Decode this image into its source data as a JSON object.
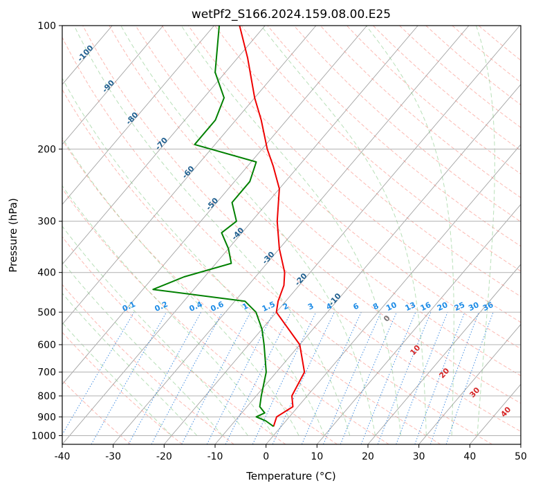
{
  "chart_data": {
    "type": "line",
    "title": "wetPf2_S166.2024.159.08.00.E25",
    "xlabel": "Temperature (°C)",
    "ylabel": "Pressure (hPa)",
    "xlim": [
      -40,
      50
    ],
    "ylim": [
      1050,
      100
    ],
    "y_scale": "log",
    "skew": "skew-T log-P diagram",
    "grid": true,
    "x_ticks": [
      -40,
      -30,
      -20,
      -10,
      0,
      10,
      20,
      30,
      40,
      50
    ],
    "y_ticks": [
      100,
      200,
      300,
      400,
      500,
      600,
      700,
      800,
      900,
      1000
    ],
    "series": [
      {
        "color": "#ee0000",
        "points": [
          {
            "p": 950,
            "t": -1.5
          },
          {
            "p": 900,
            "t": -2.5
          },
          {
            "p": 850,
            "t": -1.0
          },
          {
            "p": 800,
            "t": -3.0
          },
          {
            "p": 700,
            "t": -4.5
          },
          {
            "p": 600,
            "t": -10.0
          },
          {
            "p": 500,
            "t": -20.0
          },
          {
            "p": 470,
            "t": -21.5
          },
          {
            "p": 430,
            "t": -23.0
          },
          {
            "p": 400,
            "t": -25.0
          },
          {
            "p": 350,
            "t": -30.0
          },
          {
            "p": 300,
            "t": -35.0
          },
          {
            "p": 250,
            "t": -40.0
          },
          {
            "p": 220,
            "t": -45.0
          },
          {
            "p": 200,
            "t": -49.0
          },
          {
            "p": 170,
            "t": -55.0
          },
          {
            "p": 150,
            "t": -60.0
          },
          {
            "p": 120,
            "t": -68.0
          },
          {
            "p": 100,
            "t": -75.0
          }
        ]
      },
      {
        "color": "#008000",
        "points": [
          {
            "p": 950,
            "t": -1.5
          },
          {
            "p": 920,
            "t": -4.0
          },
          {
            "p": 900,
            "t": -6.5
          },
          {
            "p": 880,
            "t": -5.5
          },
          {
            "p": 850,
            "t": -7.5
          },
          {
            "p": 800,
            "t": -9.0
          },
          {
            "p": 700,
            "t": -12.0
          },
          {
            "p": 600,
            "t": -17.0
          },
          {
            "p": 550,
            "t": -20.0
          },
          {
            "p": 500,
            "t": -24.0
          },
          {
            "p": 470,
            "t": -28.0
          },
          {
            "p": 440,
            "t": -48.0
          },
          {
            "p": 410,
            "t": -44.0
          },
          {
            "p": 380,
            "t": -37.0
          },
          {
            "p": 350,
            "t": -40.0
          },
          {
            "p": 320,
            "t": -44.0
          },
          {
            "p": 300,
            "t": -43.0
          },
          {
            "p": 270,
            "t": -47.0
          },
          {
            "p": 240,
            "t": -47.0
          },
          {
            "p": 215,
            "t": -49.0
          },
          {
            "p": 195,
            "t": -64.0
          },
          {
            "p": 170,
            "t": -64.0
          },
          {
            "p": 150,
            "t": -66.0
          },
          {
            "p": 130,
            "t": -72.0
          },
          {
            "p": 100,
            "t": -79.0
          }
        ]
      }
    ],
    "annotations": {
      "dry_adiabat_labels": [
        "-100",
        "-90",
        "-80",
        "-70",
        "-60",
        "-50",
        "-40",
        "-30",
        "-20",
        "-10",
        "0",
        "10",
        "20",
        "30",
        "40"
      ],
      "mixing_ratio_labels": [
        "0.1",
        "0.2",
        "0.4",
        "0.6",
        "1",
        "1.5",
        "2",
        "3",
        "4",
        "6",
        "8",
        "10",
        "13",
        "16",
        "20",
        "25",
        "30",
        "36"
      ],
      "colors": {
        "dry_adiabat": "#fa8072",
        "moist_adiabat": "#7cc47c",
        "mixing_ratio": "#1e78dc",
        "isotherm": "#999999",
        "label_dark": "#1f5f8f",
        "label_red": "#d62728",
        "label_blue": "#1e8ce6"
      }
    }
  }
}
